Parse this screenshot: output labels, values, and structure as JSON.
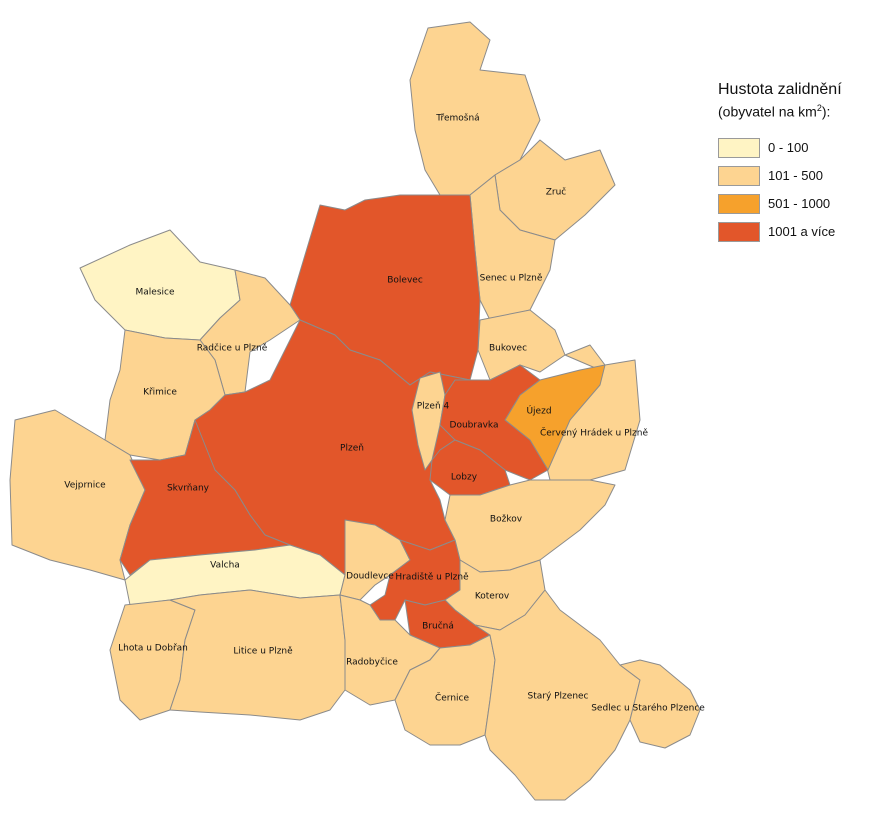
{
  "legend": {
    "title": "Hustota zalidnění",
    "subtitle_prefix": "(obyvatel na km",
    "subtitle_sup": "2",
    "subtitle_suffix": "):",
    "classes": [
      {
        "label": "0 - 100",
        "color": "#fff4c4"
      },
      {
        "label": "101 - 500",
        "color": "#fdd491"
      },
      {
        "label": "501 - 1000",
        "color": "#f6a12c"
      },
      {
        "label": "1001 a více",
        "color": "#e2562a"
      }
    ]
  },
  "regions": [
    {
      "id": "tremosna",
      "name": "Třemošná",
      "class": 1
    },
    {
      "id": "zruc",
      "name": "Zruč",
      "class": 1
    },
    {
      "id": "senec",
      "name": "Senec u Plzně",
      "class": 1
    },
    {
      "id": "bukovec",
      "name": "Bukovec",
      "class": 1
    },
    {
      "id": "bolevec",
      "name": "Bolevec",
      "class": 3
    },
    {
      "id": "malesice",
      "name": "Malesice",
      "class": 0
    },
    {
      "id": "radcice",
      "name": "Radčice u Plzně",
      "class": 1
    },
    {
      "id": "krimice",
      "name": "Křimice",
      "class": 1
    },
    {
      "id": "vejprnice",
      "name": "Vejprnice",
      "class": 1
    },
    {
      "id": "skvnany",
      "name": "Skvrňany",
      "class": 3
    },
    {
      "id": "plzen",
      "name": "Plzeň",
      "class": 3
    },
    {
      "id": "plzen4",
      "name": "Plzeň 4",
      "class": 1
    },
    {
      "id": "doubravka",
      "name": "Doubravka",
      "class": 3
    },
    {
      "id": "ujezd",
      "name": "Újezd",
      "class": 2
    },
    {
      "id": "cerveny",
      "name": "Červený Hrádek u Plzně",
      "class": 1
    },
    {
      "id": "lobzy",
      "name": "Lobzy",
      "class": 3
    },
    {
      "id": "bozkov",
      "name": "Božkov",
      "class": 1
    },
    {
      "id": "valcha",
      "name": "Valcha",
      "class": 0
    },
    {
      "id": "doudlevce",
      "name": "Doudlevce",
      "class": 1
    },
    {
      "id": "hradiste",
      "name": "Hradiště u Plzně",
      "class": 3
    },
    {
      "id": "koterov",
      "name": "Koterov",
      "class": 1
    },
    {
      "id": "brucna",
      "name": "Bručná",
      "class": 3
    },
    {
      "id": "lhota",
      "name": "Lhota u Dobřan",
      "class": 1
    },
    {
      "id": "litice",
      "name": "Litice u Plzně",
      "class": 1
    },
    {
      "id": "radobycice",
      "name": "Radobyčice",
      "class": 1
    },
    {
      "id": "cernice",
      "name": "Černice",
      "class": 1
    },
    {
      "id": "stary",
      "name": "Starý Plzenec",
      "class": 1
    },
    {
      "id": "sedlec",
      "name": "Sedlec u Starého Plzence",
      "class": 1
    }
  ]
}
